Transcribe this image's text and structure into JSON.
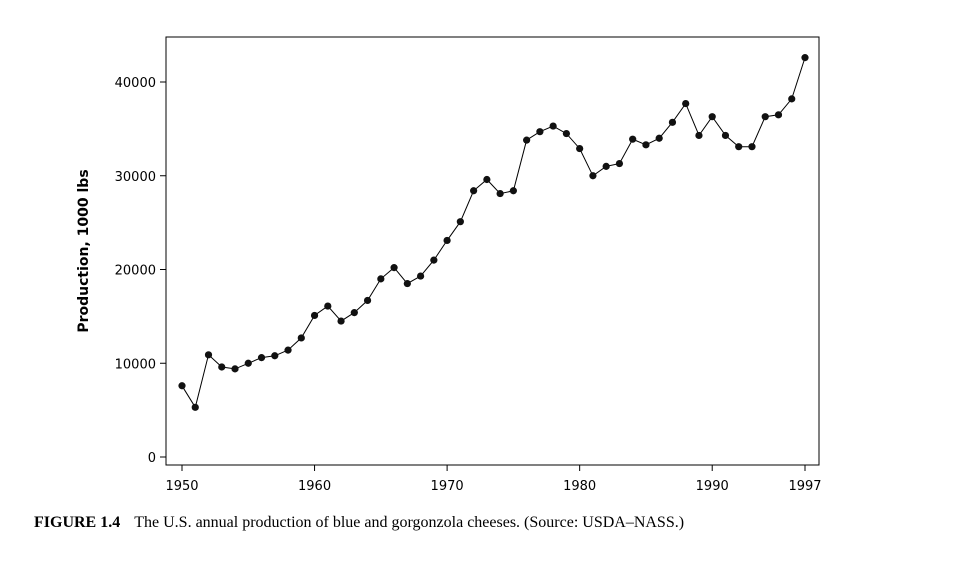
{
  "chart_data": {
    "type": "line",
    "xlabel": "",
    "ylabel": "Production, 1000 lbs",
    "xlim": [
      1950,
      1997
    ],
    "ylim": [
      0,
      45000
    ],
    "x_ticks": [
      1950,
      1960,
      1970,
      1980,
      1990,
      1997
    ],
    "y_ticks": [
      0,
      10000,
      20000,
      30000,
      40000
    ],
    "grid": false,
    "series": [
      {
        "x": [
          1950,
          1951,
          1952,
          1953,
          1954,
          1955,
          1956,
          1957,
          1958,
          1959,
          1960,
          1961,
          1962,
          1963,
          1964,
          1965,
          1966,
          1967,
          1968,
          1969,
          1970,
          1971,
          1972,
          1973,
          1974,
          1975,
          1976,
          1977,
          1978,
          1979,
          1980,
          1981,
          1982,
          1983,
          1984,
          1985,
          1986,
          1987,
          1988,
          1989,
          1990,
          1991,
          1992,
          1993,
          1994,
          1995,
          1996,
          1997
        ],
        "values": [
          7600,
          5300,
          10900,
          9600,
          9400,
          10000,
          10600,
          10800,
          11400,
          12700,
          15100,
          16100,
          14500,
          15400,
          16700,
          19000,
          20200,
          18500,
          19300,
          21000,
          23100,
          25100,
          28400,
          29600,
          28100,
          28400,
          33800,
          34700,
          35300,
          34500,
          32900,
          30000,
          31000,
          31300,
          33900,
          33300,
          34000,
          35700,
          37700,
          34300,
          36300,
          34300,
          33100,
          33100,
          36300,
          36500,
          38200,
          42600
        ]
      }
    ]
  },
  "caption": {
    "label": "FIGURE 1.4",
    "text": "The U.S. annual production of blue and gorgonzola cheeses. (Source: USDA–NASS.)"
  }
}
